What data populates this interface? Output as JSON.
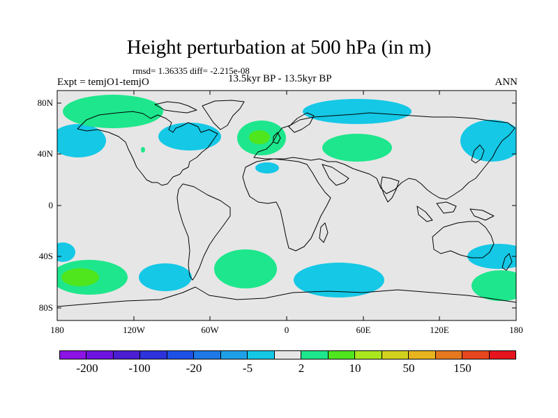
{
  "title": "Height perturbation at 500 hPa (in m)",
  "stats": "rmsd= 1.36335 diff= -2.215e-08",
  "experiment": "Expt = temjO1-temjO",
  "period": "13.5kyr BP - 13.5kyr BP",
  "season": "ANN",
  "map": {
    "projection": "cylindrical equidistant",
    "lat_labels": [
      "80N",
      "40N",
      "0",
      "40S",
      "80S"
    ],
    "lon_labels": [
      "180",
      "120W",
      "60W",
      "0",
      "60E",
      "120E",
      "180"
    ],
    "land_color": "#e6e6e6",
    "features": [
      "coastlines"
    ]
  },
  "colorbar": {
    "colors": [
      "#8c14e6",
      "#6e14e0",
      "#4b1ed2",
      "#2d32dc",
      "#1e50e6",
      "#1e78e6",
      "#1ea0e6",
      "#14c8e6",
      "#e6e6e6",
      "#1ee68c",
      "#50e61e",
      "#aae61e",
      "#d2d21e",
      "#e6b41e",
      "#e6781e",
      "#e6461e",
      "#e6141e"
    ],
    "labels": [
      "-200",
      "-100",
      "-20",
      "-5",
      "2",
      "10",
      "50",
      "150"
    ]
  }
}
